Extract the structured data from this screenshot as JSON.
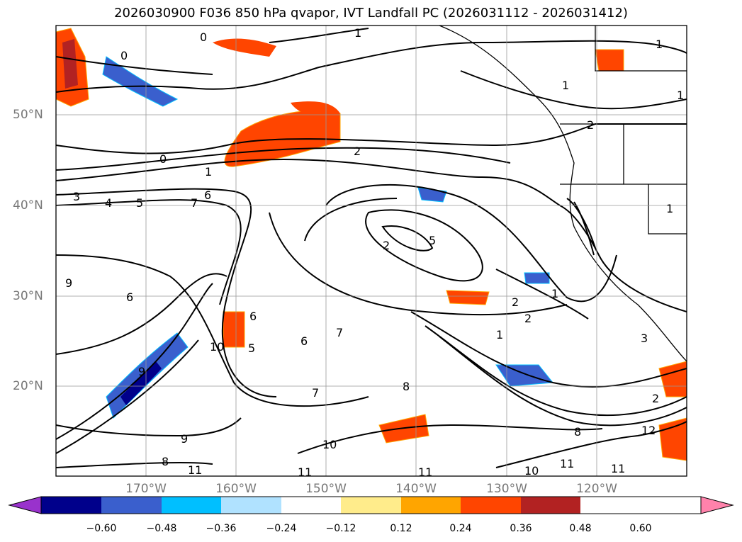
{
  "title": "2026030900 F036 850 hPa qvapor, IVT Landfall PC (2026031112 - 2026031412)",
  "map": {
    "lat_labels": [
      "50°N",
      "40°N",
      "30°N",
      "20°N"
    ],
    "lon_labels": [
      "170°W",
      "160°W",
      "150°W",
      "140°W",
      "130°W",
      "120°W"
    ],
    "contour_labels": [
      "0",
      "0",
      "0",
      "1",
      "1",
      "2",
      "1",
      "2",
      "3",
      "4",
      "5",
      "6",
      "7",
      "5",
      "2",
      "1",
      "2",
      "2",
      "1",
      "9",
      "6",
      "10",
      "9",
      "6",
      "5",
      "6",
      "7",
      "7",
      "8",
      "8",
      "9",
      "10",
      "11",
      "8",
      "11",
      "12",
      "10",
      "11",
      "11",
      "11",
      "1",
      "1",
      "1",
      "2",
      "3"
    ]
  },
  "colorbar": {
    "ticks": [
      "−0.60",
      "−0.48",
      "−0.36",
      "−0.24",
      "−0.12",
      "0.12",
      "0.24",
      "0.36",
      "0.48",
      "0.60"
    ],
    "colors": [
      "#9932cc",
      "#00008b",
      "#3a5fcd",
      "#00bfff",
      "#b0e2ff",
      "#ffffff",
      "#ffec8b",
      "#ffa500",
      "#ff4500",
      "#b22222",
      "#ff82ab"
    ]
  }
}
